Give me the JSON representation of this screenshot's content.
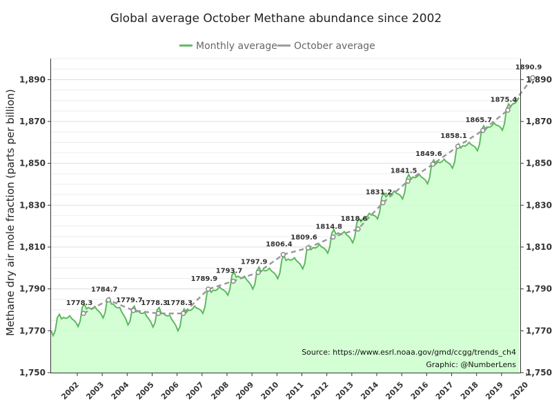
{
  "chart_data": {
    "type": "line",
    "title": "Global average October Methane abundance since 2002",
    "ylabel": "Methane dry air mole fraction (parts per billion)",
    "xlabel": "",
    "ylim": [
      1750,
      1900
    ],
    "y_ticks": [
      1750,
      1770,
      1790,
      1810,
      1830,
      1850,
      1870,
      1890
    ],
    "y_tick_labels": [
      "1,750",
      "1,770",
      "1,790",
      "1,810",
      "1,830",
      "1,850",
      "1,870",
      "1,890"
    ],
    "grid": true,
    "legend_position": "top-center",
    "colors": {
      "monthly": "#5cb85c",
      "october": "#999999",
      "fill": "#ccffcc"
    },
    "x_categories": [
      "2002",
      "2003",
      "2004",
      "2005",
      "2006",
      "2007",
      "2008",
      "2009",
      "2010",
      "2011",
      "2012",
      "2013",
      "2014",
      "2015",
      "2016",
      "2017",
      "2018",
      "2019",
      "2020"
    ],
    "series": [
      {
        "name": "Monthly average",
        "style": "solid-area",
        "base_years": [
          2001.67,
          2002.67,
          2003.67,
          2004.67,
          2005.67,
          2006.67,
          2007.67,
          2008.67,
          2009.67,
          2010.67,
          2011.67,
          2012.67,
          2013.67,
          2014.67,
          2015.67,
          2016.67,
          2017.67,
          2018.67,
          2019.67,
          2020.67
        ],
        "base_values": [
          1774.5,
          1779.5,
          1783.5,
          1779.0,
          1778.5,
          1776.5,
          1786.5,
          1795.0,
          1797.0,
          1802.5,
          1807.0,
          1815.0,
          1819.5,
          1832.0,
          1841.0,
          1848.0,
          1855.5,
          1864.0,
          1874.0,
          1888.0
        ],
        "seasonal": [
          -0.4,
          -0.5,
          0.0,
          -1.8,
          -3.0,
          -4.5,
          -6.8,
          -4.6,
          1.6,
          2.8,
          0.2,
          0.5
        ]
      },
      {
        "name": "October average",
        "style": "dashed",
        "x": [
          2002,
          2003,
          2004,
          2005,
          2006,
          2007,
          2008,
          2009,
          2010,
          2011,
          2012,
          2013,
          2014,
          2015,
          2016,
          2017,
          2018,
          2019,
          2020
        ],
        "values": [
          1778.3,
          1784.7,
          1779.7,
          1778.3,
          1778.3,
          1789.9,
          1793.7,
          1797.9,
          1806.4,
          1809.6,
          1814.8,
          1818.6,
          1831.2,
          1841.5,
          1849.6,
          1858.1,
          1865.7,
          1875.4,
          1890.9
        ],
        "labels": [
          "1778.3",
          "1784.7",
          "1779.7",
          "1778.3",
          "1778.3",
          "1789.9",
          "1793.7",
          "1797.9",
          "1806.4",
          "1809.6",
          "1814.8",
          "1818.6",
          "1831.2",
          "1841.5",
          "1849.6",
          "1858.1",
          "1865.7",
          "1875.4",
          "1890.9"
        ]
      }
    ],
    "annotations": [
      "Source: https://www.esrl.noaa.gov/gmd/ccgg/trends_ch4",
      "Graphic: @NumberLens"
    ]
  }
}
